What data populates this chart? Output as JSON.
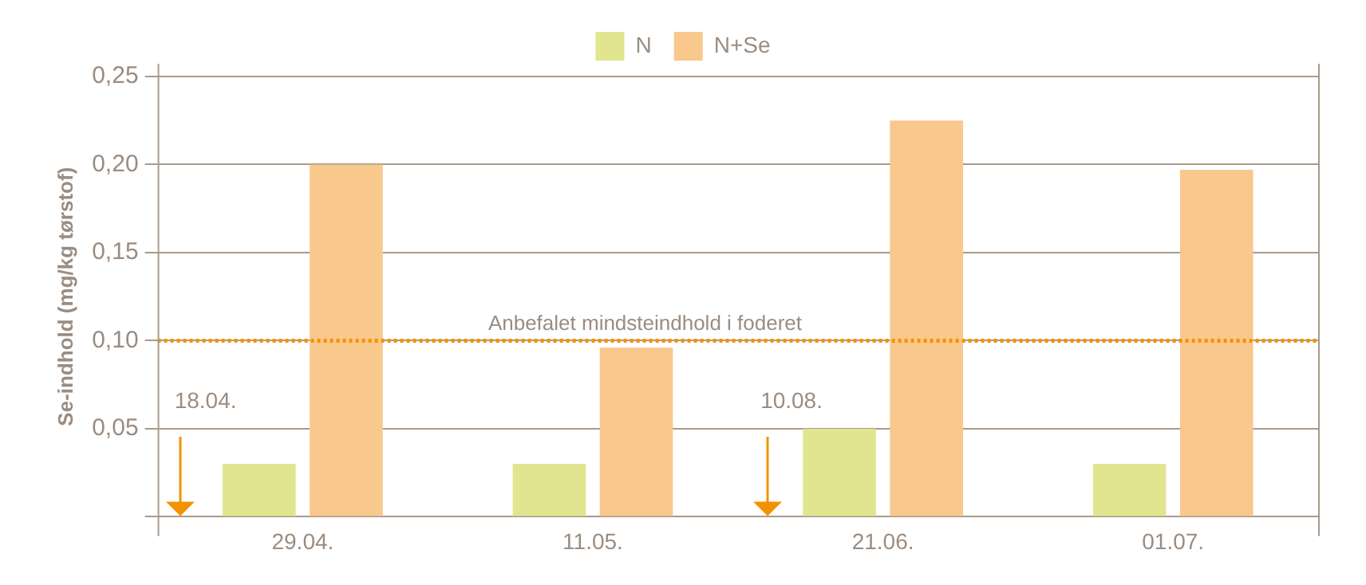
{
  "chart_data": {
    "type": "bar",
    "ylabel": "Se-indhold (mg/kg tørstof)",
    "categories": [
      "29.04.",
      "11.05.",
      "21.06.",
      "01.07."
    ],
    "series": [
      {
        "name": "N",
        "color": "#e1e58f",
        "values": [
          0.03,
          0.03,
          0.05,
          0.03
        ]
      },
      {
        "name": "N+Se",
        "color": "#f9c88c",
        "values": [
          0.2,
          0.096,
          0.225,
          0.197
        ]
      }
    ],
    "ylim": [
      0,
      0.25
    ],
    "yticks": [
      {
        "value": 0,
        "label": null
      },
      {
        "value": 0.05,
        "label": "0,05"
      },
      {
        "value": 0.1,
        "label": "0,10"
      },
      {
        "value": 0.15,
        "label": "0,15"
      },
      {
        "value": 0.2,
        "label": "0,20"
      },
      {
        "value": 0.25,
        "label": "0,25"
      }
    ],
    "ref_lines": [
      {
        "axis": "y",
        "value": 0.1,
        "label": "Anbefalet mindsteindhold i foderet",
        "color": "#f39200",
        "line_style": "dotted"
      }
    ],
    "annotations": [
      "18.04.",
      "10.08."
    ],
    "grid": "y",
    "legend": "top"
  }
}
